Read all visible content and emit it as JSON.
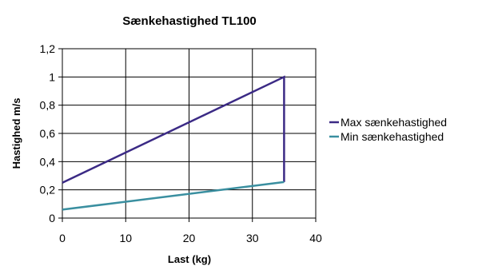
{
  "chart_data": {
    "type": "line",
    "title": "Sænkehastighed TL100",
    "xlabel": "Last (kg)",
    "ylabel": "Hastighed m/s",
    "xlim": [
      0,
      40
    ],
    "ylim": [
      0,
      1.2
    ],
    "x_ticks": [
      0,
      10,
      20,
      30,
      40
    ],
    "y_ticks": [
      0,
      0.2,
      0.4,
      0.6,
      0.8,
      1,
      1.2
    ],
    "x_tick_labels": [
      "0",
      "10",
      "20",
      "30",
      "40"
    ],
    "y_tick_labels": [
      "0",
      "0,2",
      "0,4",
      "0,6",
      "0,8",
      "1",
      "1,2"
    ],
    "grid": true,
    "legend_position": "right",
    "series": [
      {
        "name": "Max sænkehastighed",
        "color": "#3b2a85",
        "points": [
          [
            0,
            0.25
          ],
          [
            35,
            1.0
          ],
          [
            35,
            0.255
          ]
        ]
      },
      {
        "name": "Min sænkehastighed",
        "color": "#3a8fa0",
        "points": [
          [
            0,
            0.06
          ],
          [
            35,
            0.255
          ]
        ]
      }
    ]
  }
}
